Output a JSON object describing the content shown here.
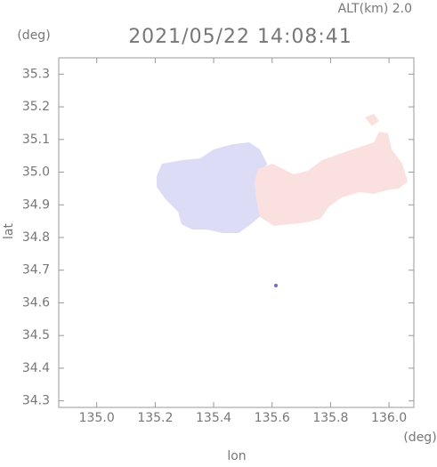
{
  "chart_data": {
    "type": "map",
    "title": "2021/05/22 14:08:41",
    "subtitle": "ALT(km) 2.0",
    "xlabel": "lon",
    "ylabel": "lat",
    "xunit": "(deg)",
    "yunit": "(deg)",
    "xlim": [
      134.87,
      136.085
    ],
    "ylim": [
      34.28,
      35.35
    ],
    "xticks": [
      {
        "value": 135,
        "label": "135.0"
      },
      135.2,
      135.4,
      135.6,
      135.8,
      {
        "value": 136,
        "label": "136.0"
      }
    ],
    "yticks": [
      34.3,
      34.4,
      34.5,
      34.6,
      34.7,
      34.8,
      34.9,
      {
        "value": 35,
        "label": "35.0"
      },
      35.1,
      35.2,
      35.3
    ]
  }
}
